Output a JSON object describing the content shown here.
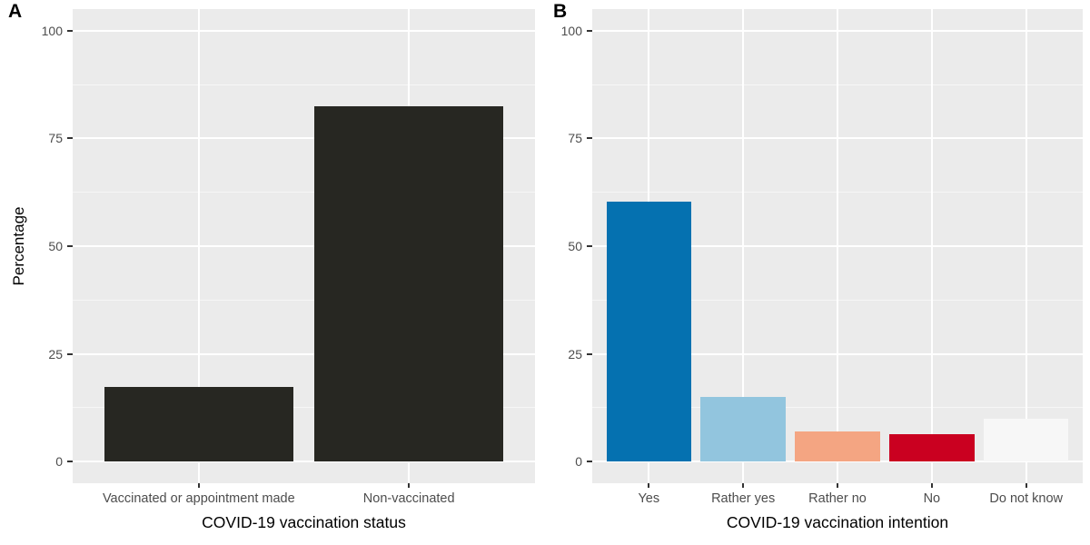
{
  "figure": {
    "background_color": "#ffffff",
    "panel_background_color": "#ebebeb",
    "major_gridline_color": "#ffffff",
    "minor_gridline_color": "rgba(255,255,255,0.55)",
    "tick_mark_color": "#333333",
    "tick_label_color": "#4d4d4d",
    "axis_title_color": "#000000"
  },
  "chart_data": [
    {
      "panel_label": "A",
      "type": "bar",
      "title": "",
      "xlabel": "COVID-19 vaccination status",
      "ylabel": "Percentage",
      "categories": [
        "Vaccinated or appointment made",
        "Non-vaccinated"
      ],
      "values": [
        17.3,
        82.5
      ],
      "bar_colors": [
        "#272722",
        "#272722"
      ],
      "ylim": [
        0,
        100
      ],
      "yticks": [
        0,
        25,
        50,
        75,
        100
      ],
      "minor_gridlines": [
        12.5,
        37.5,
        62.5,
        87.5
      ],
      "grid": true,
      "legend": false,
      "bar_width_fraction": 0.9,
      "axis_expansion_units": 5
    },
    {
      "panel_label": "B",
      "type": "bar",
      "title": "",
      "xlabel": "COVID-19 vaccination intention",
      "ylabel": "",
      "categories": [
        "Yes",
        "Rather yes",
        "Rather no",
        "No",
        "Do not know"
      ],
      "values": [
        60.3,
        15,
        7,
        6.3,
        10
      ],
      "bar_colors": [
        "#0571b0",
        "#92c5de",
        "#f4a582",
        "#ca0020",
        "#f7f7f7"
      ],
      "ylim": [
        0,
        100
      ],
      "yticks": [
        0,
        25,
        50,
        75,
        100
      ],
      "minor_gridlines": [
        12.5,
        37.5,
        62.5,
        87.5
      ],
      "grid": true,
      "legend": false,
      "bar_width_fraction": 0.9,
      "axis_expansion_units": 5
    }
  ]
}
